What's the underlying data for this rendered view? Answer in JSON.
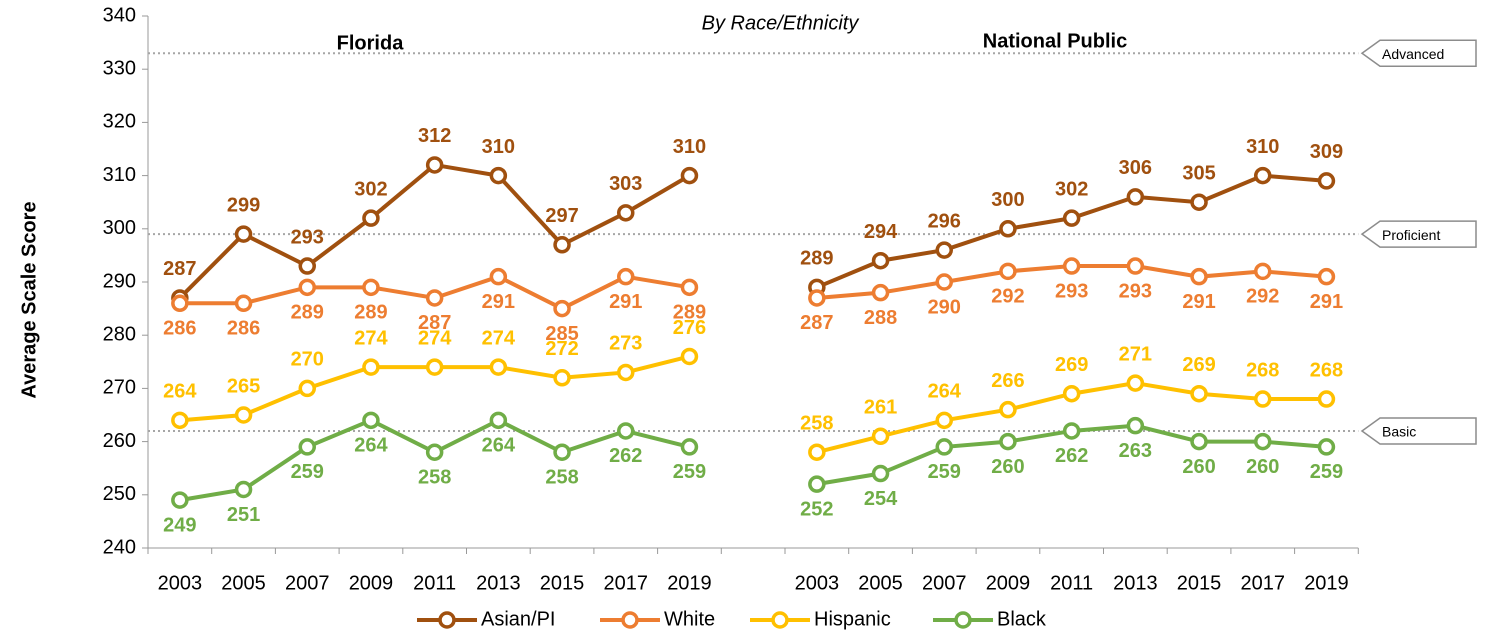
{
  "chart_data": {
    "type": "line",
    "subtitle": "By Race/Ethnicity",
    "annotations": [
      "Florida",
      "National Public"
    ],
    "y_label": "Average Scale Score",
    "categories": [
      "2003",
      "2005",
      "2007",
      "2009",
      "2011",
      "2013",
      "2015",
      "2017",
      "2019",
      null,
      "2003",
      "2005",
      "2007",
      "2009",
      "2011",
      "2013",
      "2015",
      "2017",
      "2019"
    ],
    "series": [
      {
        "name": "Asian/PI",
        "color": "#a0500f",
        "label_side": "above",
        "values": [
          287,
          299,
          293,
          302,
          312,
          310,
          297,
          303,
          310,
          null,
          289,
          294,
          296,
          300,
          302,
          306,
          305,
          310,
          309
        ]
      },
      {
        "name": "White",
        "color": "#ed7d31",
        "label_side": "below",
        "values": [
          286,
          286,
          289,
          289,
          287,
          291,
          285,
          291,
          289,
          null,
          287,
          288,
          290,
          292,
          293,
          293,
          291,
          292,
          291
        ]
      },
      {
        "name": "Hispanic",
        "color": "#ffc000",
        "label_side": "above",
        "values": [
          264,
          265,
          270,
          274,
          274,
          274,
          272,
          273,
          276,
          null,
          258,
          261,
          264,
          266,
          269,
          271,
          269,
          268,
          268
        ]
      },
      {
        "name": "Black",
        "color": "#70ad47",
        "label_side": "below",
        "values": [
          249,
          251,
          259,
          264,
          258,
          264,
          258,
          262,
          259,
          null,
          252,
          254,
          259,
          260,
          262,
          263,
          260,
          260,
          259
        ]
      }
    ],
    "reference_lines": [
      {
        "label": "Advanced",
        "value": 333
      },
      {
        "label": "Proficient",
        "value": 299
      },
      {
        "label": "Basic",
        "value": 262
      }
    ],
    "ylim": [
      240,
      340
    ],
    "yticks": [
      240,
      250,
      260,
      270,
      280,
      290,
      300,
      310,
      320,
      330,
      340
    ],
    "legend": "bottom"
  }
}
